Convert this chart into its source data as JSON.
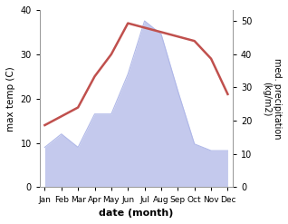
{
  "months": [
    "Jan",
    "Feb",
    "Mar",
    "Apr",
    "May",
    "Jun",
    "Jul",
    "Aug",
    "Sep",
    "Oct",
    "Nov",
    "Dec"
  ],
  "temperature": [
    14,
    16,
    18,
    25,
    30,
    37,
    36,
    35,
    34,
    33,
    29,
    21
  ],
  "precipitation": [
    12,
    16,
    12,
    22,
    22,
    34,
    50,
    46,
    29,
    13,
    11,
    11
  ],
  "temp_color": "#c0504d",
  "precip_color_fill": "#b0b8e8",
  "ylim_temp": [
    0,
    40
  ],
  "ylim_precip": [
    0,
    53.3
  ],
  "ylabel_left": "max temp (C)",
  "ylabel_right": "med. precipitation\n(kg/m2)",
  "xlabel": "date (month)",
  "spine_color": "#999999"
}
